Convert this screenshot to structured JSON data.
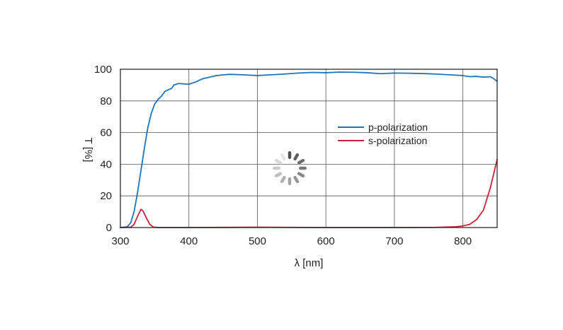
{
  "chart_data": {
    "type": "line",
    "title": "",
    "xlabel": "λ [nm]",
    "ylabel": "T [%]",
    "xlim": [
      300,
      850
    ],
    "ylim": [
      0,
      100
    ],
    "x_ticks": [
      300,
      400,
      500,
      600,
      700,
      800
    ],
    "y_ticks": [
      0,
      20,
      40,
      60,
      80,
      100
    ],
    "grid": true,
    "legend_position": "right-center",
    "series": [
      {
        "name": "p-polarization",
        "color": "#1f73b7",
        "points": [
          [
            300,
            0
          ],
          [
            310,
            0.5
          ],
          [
            315,
            3
          ],
          [
            320,
            10
          ],
          [
            325,
            22
          ],
          [
            330,
            36
          ],
          [
            335,
            50
          ],
          [
            340,
            63
          ],
          [
            345,
            72
          ],
          [
            350,
            78
          ],
          [
            355,
            81
          ],
          [
            360,
            83
          ],
          [
            365,
            86
          ],
          [
            370,
            87
          ],
          [
            375,
            88
          ],
          [
            378,
            90
          ],
          [
            385,
            91
          ],
          [
            400,
            90.5
          ],
          [
            410,
            92
          ],
          [
            420,
            94
          ],
          [
            430,
            95
          ],
          [
            440,
            96
          ],
          [
            450,
            96.5
          ],
          [
            460,
            96.8
          ],
          [
            480,
            96.5
          ],
          [
            500,
            96
          ],
          [
            520,
            96.5
          ],
          [
            540,
            97
          ],
          [
            560,
            97.6
          ],
          [
            580,
            98
          ],
          [
            600,
            97.8
          ],
          [
            620,
            98.2
          ],
          [
            640,
            98.1
          ],
          [
            660,
            97.8
          ],
          [
            680,
            97.2
          ],
          [
            700,
            97.6
          ],
          [
            720,
            97.5
          ],
          [
            740,
            97.3
          ],
          [
            760,
            97
          ],
          [
            780,
            96.5
          ],
          [
            800,
            96
          ],
          [
            810,
            95.3
          ],
          [
            820,
            95.5
          ],
          [
            830,
            95
          ],
          [
            840,
            95.3
          ],
          [
            845,
            94
          ],
          [
            848,
            93
          ],
          [
            850,
            92.5
          ]
        ]
      },
      {
        "name": "s-polarization",
        "color": "#cc1f3a",
        "points": [
          [
            300,
            0
          ],
          [
            315,
            0.2
          ],
          [
            320,
            2
          ],
          [
            325,
            7
          ],
          [
            330,
            11.5
          ],
          [
            333,
            10.5
          ],
          [
            338,
            6
          ],
          [
            343,
            2
          ],
          [
            348,
            0.3
          ],
          [
            355,
            0
          ],
          [
            400,
            0
          ],
          [
            500,
            0.2
          ],
          [
            600,
            0
          ],
          [
            700,
            0
          ],
          [
            760,
            0.1
          ],
          [
            790,
            0.5
          ],
          [
            800,
            1
          ],
          [
            810,
            2
          ],
          [
            820,
            5
          ],
          [
            830,
            11
          ],
          [
            840,
            25
          ],
          [
            845,
            34
          ],
          [
            850,
            43
          ]
        ]
      }
    ]
  }
}
